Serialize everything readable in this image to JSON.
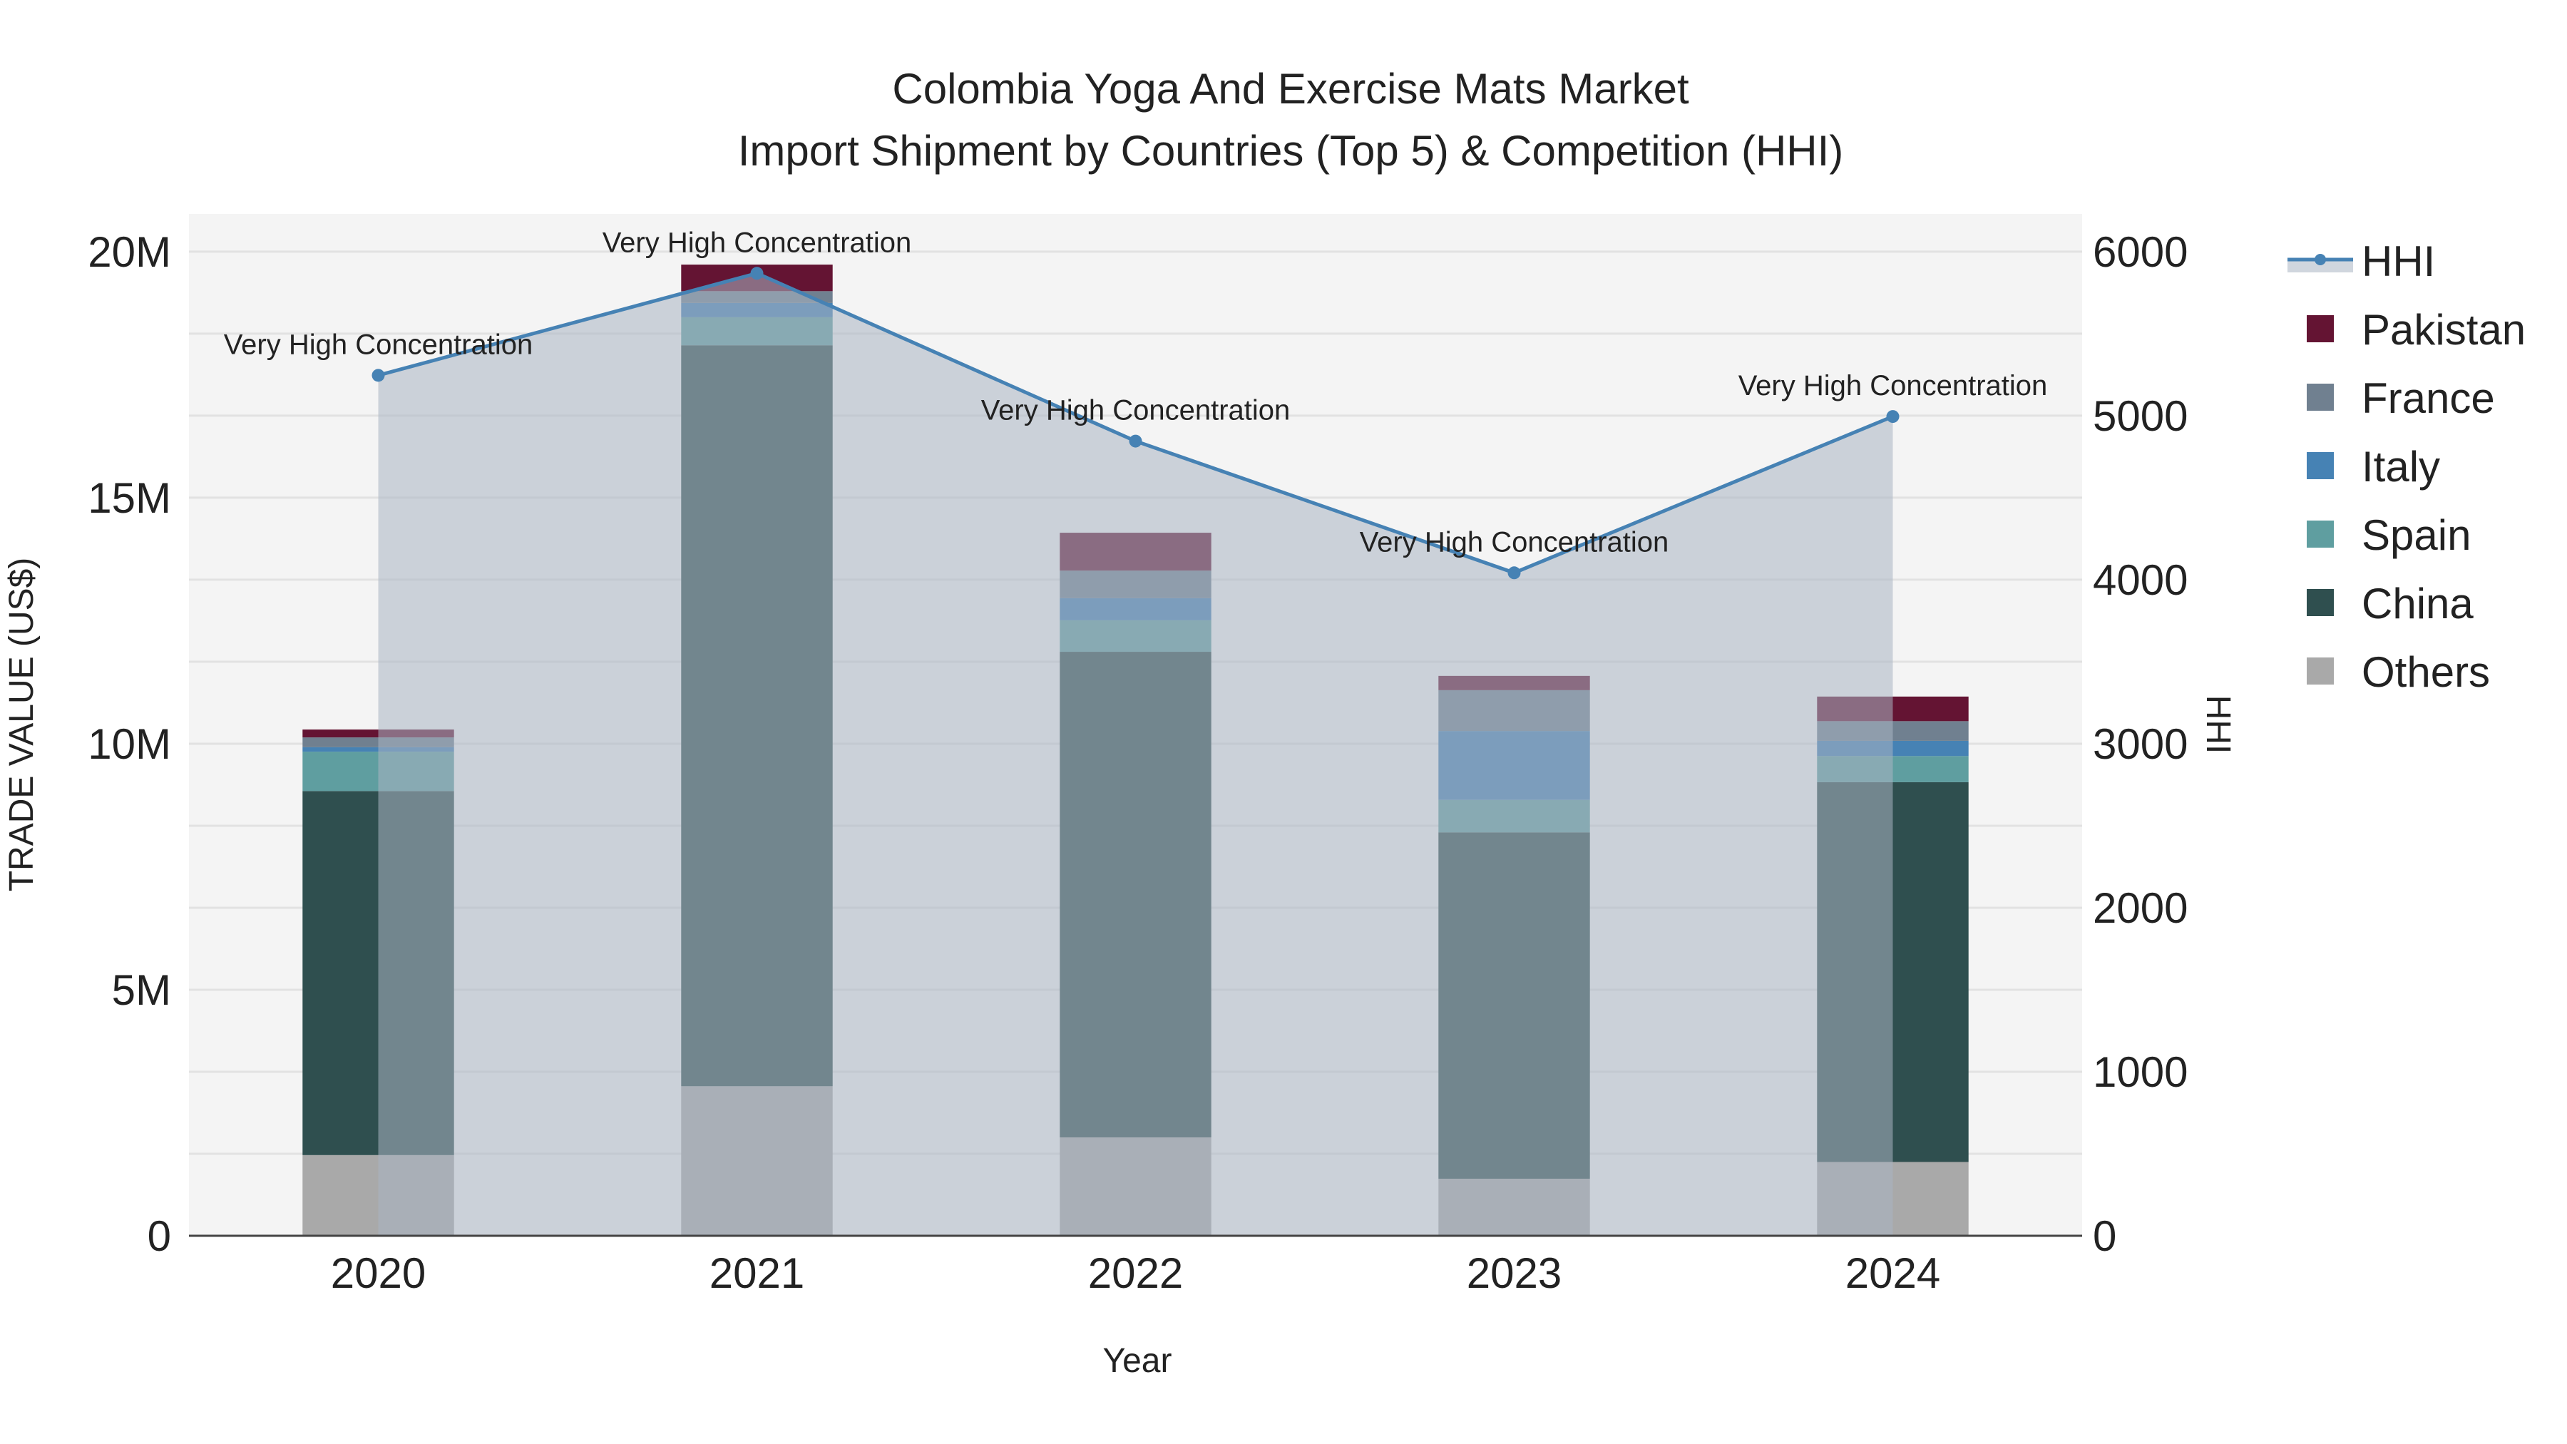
{
  "chart_data": {
    "type": "bar",
    "stacked": true,
    "title": "Colombia Yoga And Exercise Mats Market",
    "subtitle": "Import Shipment by Countries (Top 5) & Competition (HHI)",
    "xlabel": "Year",
    "ylabel": "TRADE VALUE (US$)",
    "y2label": "HHI",
    "categories": [
      "2020",
      "2021",
      "2022",
      "2023",
      "2024"
    ],
    "ylim": [
      0,
      20770000
    ],
    "y2lim": [
      0,
      6230
    ],
    "yticks": [
      {
        "v": 0,
        "label": "0"
      },
      {
        "v": 5000000,
        "label": "5M"
      },
      {
        "v": 10000000,
        "label": "10M"
      },
      {
        "v": 15000000,
        "label": "15M"
      },
      {
        "v": 20000000,
        "label": "20M"
      }
    ],
    "y2ticks": [
      {
        "v": 0,
        "label": "0"
      },
      {
        "v": 1000,
        "label": "1000"
      },
      {
        "v": 2000,
        "label": "2000"
      },
      {
        "v": 3000,
        "label": "3000"
      },
      {
        "v": 4000,
        "label": "4000"
      },
      {
        "v": 5000,
        "label": "5000"
      },
      {
        "v": 6000,
        "label": "6000"
      }
    ],
    "series": [
      {
        "name": "Others",
        "color": "#A9A9A9",
        "values": [
          1640000,
          3040000,
          2000000,
          1160000,
          1500000
        ]
      },
      {
        "name": "China",
        "color": "#2F4F4F",
        "values": [
          7400000,
          15060000,
          9870000,
          7040000,
          7720000
        ]
      },
      {
        "name": "Spain",
        "color": "#5F9EA0",
        "values": [
          800000,
          570000,
          640000,
          660000,
          530000
        ]
      },
      {
        "name": "Italy",
        "color": "#4682B4",
        "values": [
          90000,
          290000,
          450000,
          1400000,
          310000
        ]
      },
      {
        "name": "France",
        "color": "#708090",
        "values": [
          200000,
          240000,
          560000,
          830000,
          400000
        ]
      },
      {
        "name": "Pakistan",
        "color": "#641433",
        "values": [
          160000,
          540000,
          770000,
          290000,
          500000
        ]
      }
    ],
    "hhi": {
      "name": "HHI",
      "color": "#4682B4",
      "values": [
        5246,
        5868,
        4845,
        4042,
        4995
      ],
      "annotations": [
        "Very High Concentration",
        "Very High Concentration",
        "Very High Concentration",
        "Very High Concentration",
        "Very High Concentration"
      ]
    },
    "legend_order": [
      "HHI",
      "Pakistan",
      "France",
      "Italy",
      "Spain",
      "China",
      "Others"
    ],
    "legend_position": "right",
    "grid": true
  }
}
